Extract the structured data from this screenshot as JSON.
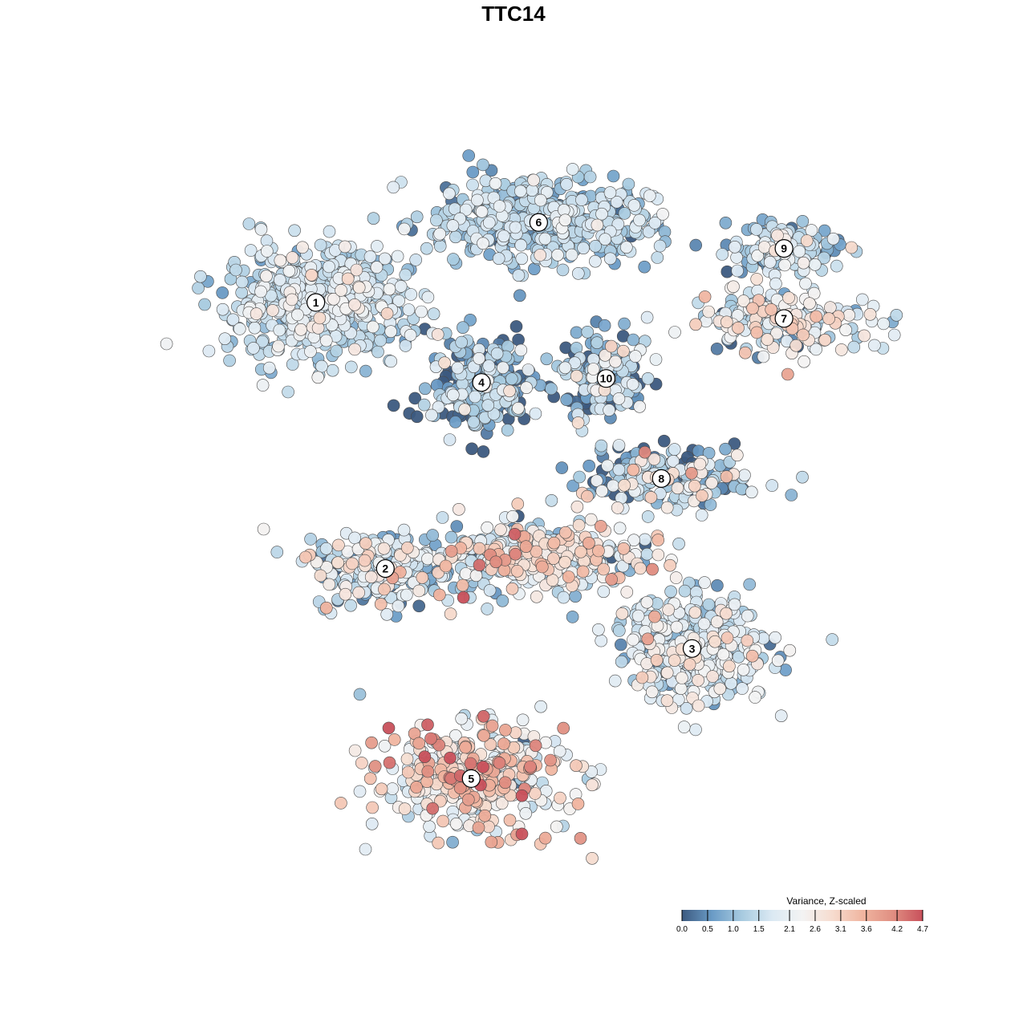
{
  "chart_data": {
    "type": "scatter",
    "title": "TTC14",
    "xlabel": "",
    "ylabel": "",
    "grid": false,
    "axes_visible": false,
    "legend": {
      "title": "Variance, Z-scaled",
      "placement": "bottom-right",
      "min": 0.0,
      "max": 4.7,
      "ticks": [
        {
          "value": 0.0,
          "label": "0.0"
        },
        {
          "value": 0.5,
          "label": "0.5"
        },
        {
          "value": 1.0,
          "label": "1.0"
        },
        {
          "value": 1.5,
          "label": "1.5"
        },
        {
          "value": 2.1,
          "label": "2.1"
        },
        {
          "value": 2.6,
          "label": "2.6"
        },
        {
          "value": 3.1,
          "label": "3.1"
        },
        {
          "value": 3.6,
          "label": "3.6"
        },
        {
          "value": 4.2,
          "label": "4.2"
        },
        {
          "value": 4.7,
          "label": "4.7"
        }
      ],
      "colors": [
        "#3c5a80",
        "#6a9bc6",
        "#a8cbe0",
        "#dbe9f3",
        "#f3f3f3",
        "#f6dccf",
        "#f0b5a0",
        "#e08f82",
        "#c8505b"
      ]
    },
    "clusters": [
      {
        "label": "1",
        "center": [
          -9.4,
          6.8
        ],
        "spread": [
          4.0,
          2.5
        ],
        "n": 560,
        "mean_value": 1.55,
        "sd": 0.5
      },
      {
        "label": "2",
        "center": [
          -6.0,
          -6.5
        ],
        "spread": [
          3.2,
          1.7
        ],
        "n": 230,
        "mean_value": 1.6,
        "sd": 0.9
      },
      {
        "label": "3",
        "center": [
          9.0,
          -10.5
        ],
        "spread": [
          3.5,
          2.4
        ],
        "n": 380,
        "mean_value": 1.7,
        "sd": 0.6
      },
      {
        "label": "4",
        "center": [
          -1.3,
          2.8
        ],
        "spread": [
          2.5,
          2.2
        ],
        "n": 260,
        "mean_value": 0.7,
        "sd": 0.8
      },
      {
        "label": "5",
        "center": [
          -1.8,
          -17.0
        ],
        "spread": [
          4.2,
          2.4
        ],
        "n": 380,
        "mean_value": 2.6,
        "sd": 0.9
      },
      {
        "label": "6",
        "center": [
          1.5,
          10.8
        ],
        "spread": [
          5.0,
          2.0
        ],
        "n": 460,
        "mean_value": 1.3,
        "sd": 0.5
      },
      {
        "label": "7",
        "center": [
          13.5,
          6.0
        ],
        "spread": [
          4.5,
          1.5
        ],
        "n": 200,
        "mean_value": 1.9,
        "sd": 0.9
      },
      {
        "label": "8",
        "center": [
          7.5,
          -2.0
        ],
        "spread": [
          3.5,
          1.5
        ],
        "n": 210,
        "mean_value": 1.2,
        "sd": 1.1
      },
      {
        "label": "9",
        "center": [
          13.5,
          9.5
        ],
        "spread": [
          2.5,
          1.1
        ],
        "n": 130,
        "mean_value": 1.3,
        "sd": 0.7
      },
      {
        "label": "10",
        "center": [
          4.8,
          3.0
        ],
        "spread": [
          1.8,
          2.0
        ],
        "n": 160,
        "mean_value": 0.9,
        "sd": 0.9
      },
      {
        "label": "",
        "center": [
          1.5,
          -6.0
        ],
        "spread": [
          4.5,
          1.5
        ],
        "n": 380,
        "mean_value": 2.1,
        "sd": 0.9
      }
    ],
    "xlim": [
      -17.0,
      19.5
    ],
    "ylim": [
      -22.0,
      14.5
    ]
  }
}
